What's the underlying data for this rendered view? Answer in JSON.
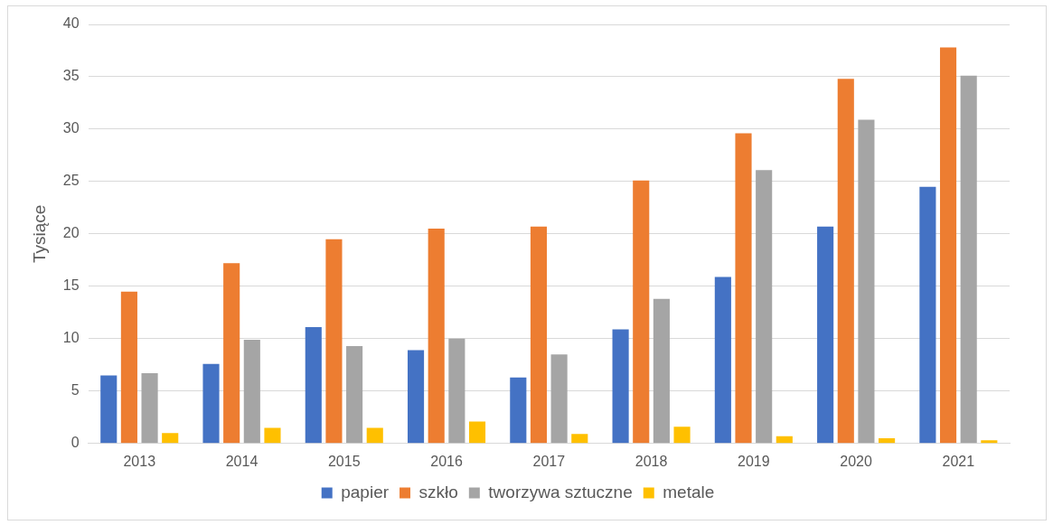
{
  "chart_data": {
    "type": "bar",
    "ylabel": "Tysiące",
    "categories": [
      "2013",
      "2014",
      "2015",
      "2016",
      "2017",
      "2018",
      "2019",
      "2020",
      "2021"
    ],
    "series": [
      {
        "name": "papier",
        "color": "#4472c4",
        "values": [
          6.5,
          7.6,
          11.1,
          8.9,
          6.3,
          10.9,
          15.9,
          20.7,
          24.5
        ]
      },
      {
        "name": "szkło",
        "color": "#ed7d31",
        "values": [
          14.5,
          17.2,
          19.5,
          20.5,
          20.7,
          25.1,
          29.6,
          34.8,
          37.8
        ]
      },
      {
        "name": "tworzywa sztuczne",
        "color": "#a5a5a5",
        "values": [
          6.7,
          9.9,
          9.3,
          10.0,
          8.5,
          13.8,
          26.1,
          30.9,
          35.1
        ]
      },
      {
        "name": "metale",
        "color": "#ffc000",
        "values": [
          1.0,
          1.5,
          1.5,
          2.1,
          0.9,
          1.6,
          0.7,
          0.5,
          0.3
        ]
      }
    ],
    "ylim": [
      0,
      40
    ],
    "yticks": [
      0,
      5,
      10,
      15,
      20,
      25,
      30,
      35,
      40
    ],
    "grid": "y",
    "legend": "bottom"
  }
}
